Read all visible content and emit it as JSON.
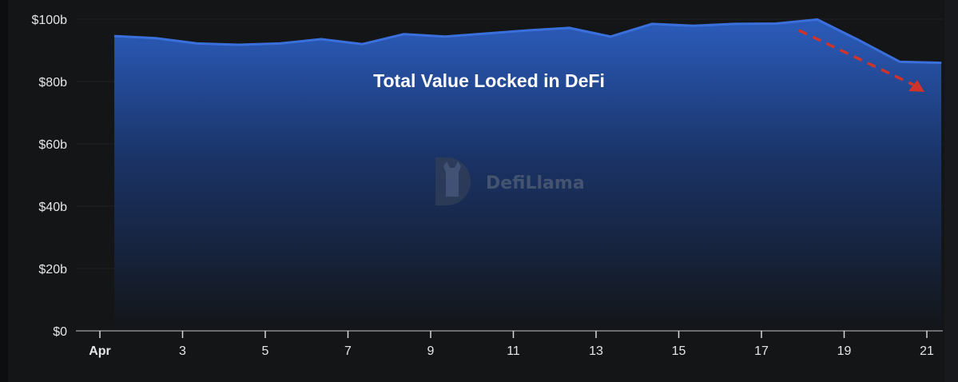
{
  "chart_data": {
    "type": "area",
    "title": "Total Value Locked in DeFi",
    "xlabel": "",
    "ylabel": "",
    "x_unit": "day of April",
    "x": [
      1,
      2,
      3,
      4,
      5,
      6,
      7,
      8,
      9,
      10,
      11,
      12,
      13,
      14,
      15,
      16,
      17,
      18,
      19,
      20,
      21
    ],
    "series": [
      {
        "values": [
          94.6,
          93.9,
          92.2,
          91.8,
          92.2,
          93.6,
          92.0,
          95.2,
          94.4,
          95.4,
          96.4,
          97.2,
          94.4,
          98.5,
          97.9,
          98.5,
          98.6,
          99.9,
          93.3,
          86.3,
          86.0
        ]
      }
    ],
    "ylim": [
      0,
      100
    ],
    "y_ticks": [
      0,
      20,
      40,
      60,
      80,
      100
    ],
    "y_tick_labels": [
      "$0",
      "$20b",
      "$40b",
      "$60b",
      "$80b",
      "$100b"
    ],
    "x_ticks": [
      1,
      3,
      5,
      7,
      9,
      11,
      13,
      15,
      17,
      19,
      21
    ],
    "x_tick_labels": [
      "Apr",
      "3",
      "5",
      "7",
      "9",
      "11",
      "13",
      "15",
      "17",
      "19",
      "21"
    ],
    "grid": true,
    "annotation": "red dashed downward arrow over Apr 18–21 decline",
    "colors": {
      "area_top": "#2b5cbc",
      "line": "#3a70dc",
      "background": "#141517",
      "arrow": "#d0332a"
    }
  },
  "watermark": "DefiLlama"
}
